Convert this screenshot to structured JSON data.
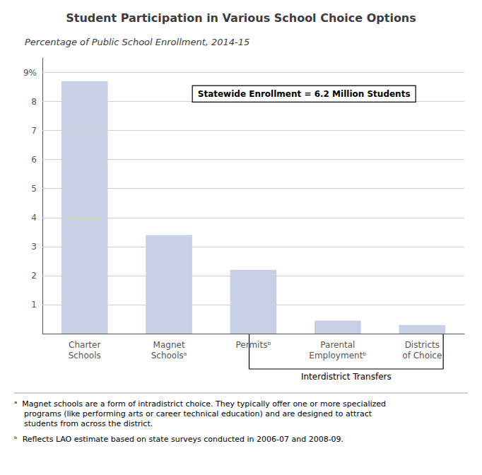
{
  "chart_data": {
    "type": "bar",
    "title": "Student Participation in Various School Choice Options",
    "subtitle": "Percentage of Public School Enrollment, 2014-15",
    "categories": [
      "Charter\nSchools",
      "Magnet\nSchoolsᵃ",
      "Permitsᵇ",
      "Parental\nEmploymentᵇ",
      "Districts\nof Choice"
    ],
    "values": [
      8.7,
      3.4,
      2.2,
      0.45,
      0.3
    ],
    "color": "#c8d0e8",
    "ylim": [
      0,
      9.5
    ],
    "yticks": [
      1,
      2,
      3,
      4,
      5,
      6,
      7,
      8,
      {
        "value": 9,
        "label": "9%"
      }
    ],
    "grid": true,
    "annotation": "Statewide Enrollment = 6.2 Million Students",
    "bracket": {
      "label": "Interdistrict Transfers",
      "from": "Permitsᵇ",
      "to": "Districts\nof Choice"
    },
    "footnotes": [
      "ᵃ  Magnet schools are a form of intradistrict choice. They typically offer one or more specialized\n    programs (like performing arts or career technical education) and are designed to attract\n    students from across the district.",
      "ᵇ  Reflects LAO estimate based on state surveys conducted in 2006-07 and 2008-09."
    ]
  }
}
